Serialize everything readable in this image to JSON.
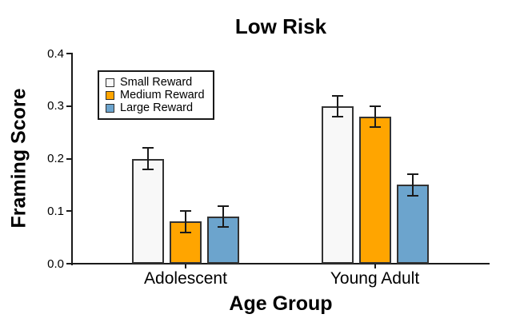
{
  "title": "Low Risk",
  "y_axis": {
    "label": "Framing Score",
    "ticks": [
      {
        "label": "0.0",
        "value": 0.0
      },
      {
        "label": "0.1",
        "value": 0.1
      },
      {
        "label": "0.2",
        "value": 0.2
      },
      {
        "label": "0.3",
        "value": 0.3
      },
      {
        "label": "0.4",
        "value": 0.4
      }
    ]
  },
  "x_axis": {
    "label": "Age Group",
    "categories": [
      "Adolescent",
      "Young Adult"
    ]
  },
  "legend": {
    "items": [
      "Small Reward",
      "Medium Reward",
      "Large Reward"
    ]
  },
  "chart_data": {
    "type": "bar",
    "title": "Low Risk",
    "xlabel": "Age Group",
    "ylabel": "Framing Score",
    "ylim": [
      0.0,
      0.4
    ],
    "grid": false,
    "legend_position": "upper-left-inside",
    "categories": [
      "Adolescent",
      "Young Adult"
    ],
    "series": [
      {
        "name": "Small Reward",
        "color": "#f8f8f8",
        "values": [
          0.2,
          0.3
        ],
        "errors": [
          0.02,
          0.02
        ]
      },
      {
        "name": "Medium Reward",
        "color": "#ffa500",
        "values": [
          0.08,
          0.28
        ],
        "errors": [
          0.02,
          0.02
        ]
      },
      {
        "name": "Large Reward",
        "color": "#6ca4cd",
        "values": [
          0.09,
          0.15
        ],
        "errors": [
          0.02,
          0.02
        ]
      }
    ]
  },
  "colors": {
    "axis": "#1a1a1a",
    "bar_border": "#333333",
    "error_bar": "#1a1a1a",
    "background": "#ffffff"
  }
}
